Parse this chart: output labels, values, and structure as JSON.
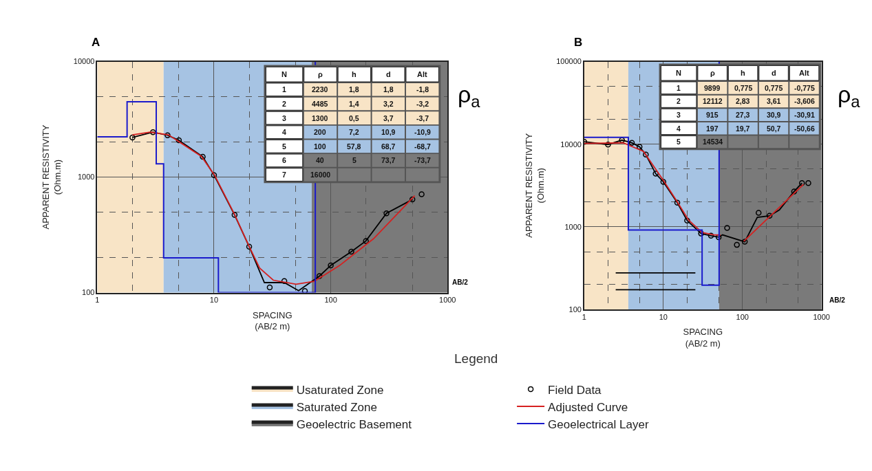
{
  "chart_data": [
    {
      "type": "line",
      "title": "A",
      "xlabel": "SPACING\n(AB/2 m)",
      "ylabel": "APPARENT RESISTIVITY\n(Ohm.m)",
      "legend_title": "Legend",
      "legend": "bottom",
      "log": "xy",
      "grid": true,
      "xlim": [
        1,
        1000
      ],
      "xticks": [
        1,
        {
          "value": 2,
          "label": null
        },
        {
          "value": 5,
          "label": null
        },
        10,
        {
          "value": 20,
          "label": null
        },
        {
          "value": 50,
          "label": null
        },
        100,
        {
          "value": 200,
          "label": null
        },
        {
          "value": 500,
          "label": null
        },
        1000
      ],
      "ylim": [
        100,
        10000
      ],
      "yticks": [
        100,
        {
          "value": 200,
          "label": null
        },
        {
          "value": 500,
          "label": null
        },
        1000,
        {
          "value": 2000,
          "label": null
        },
        {
          "value": 5000,
          "label": null
        },
        10000
      ],
      "bands": [
        {
          "axis": "x",
          "from": 1,
          "to": 3.7,
          "label": "Usaturated Zone",
          "color": "#f8e4c6"
        },
        {
          "axis": "x",
          "from": 3.7,
          "to": 68.7,
          "label": "Saturated Zone",
          "color": "#a6c3e3"
        },
        {
          "axis": "x",
          "from": 68.7,
          "to": 1000,
          "label": "Geoelectric Basement",
          "color": "#7a7a7a"
        }
      ],
      "series": [
        {
          "name": "Field Data",
          "type": "scatter",
          "marker": "circle",
          "color": "#000000",
          "x": [
            2,
            3,
            4,
            5,
            8,
            10,
            15,
            20,
            30,
            40,
            60,
            80,
            100,
            150,
            200,
            300,
            500,
            600
          ],
          "values": [
            2200,
            2450,
            2300,
            2080,
            1500,
            1040,
            470,
            250,
            111,
            126,
            103,
            139,
            172,
            226,
            280,
            486,
            640,
            710
          ]
        },
        {
          "color": "#000000",
          "x": [
            2,
            3,
            4,
            5,
            8,
            10,
            15,
            20,
            27,
            40,
            53,
            80,
            100,
            150,
            200,
            300,
            500
          ],
          "values": [
            2200,
            2450,
            2300,
            2080,
            1500,
            1040,
            470,
            250,
            122,
            122,
            104,
            139,
            172,
            226,
            280,
            486,
            640
          ]
        },
        {
          "name": "Adjusted Curve",
          "color": "#d62020",
          "x": [
            2,
            2.84,
            4.07,
            7.8,
            10.1,
            14.9,
            19.8,
            24.6,
            32.2,
            50.5,
            72.2,
            118.5,
            233,
            523
          ],
          "values": [
            2320,
            2450,
            2320,
            1510,
            1040,
            481,
            256,
            163,
            128,
            118,
            125,
            171,
            293,
            689
          ]
        },
        {
          "name": "Geoelectrical Layer",
          "type": "step",
          "color": "#1a1acc",
          "x": [
            1,
            1.8,
            3.2,
            3.7,
            10.9,
            68.7,
            73.7
          ],
          "values": [
            2230,
            4485,
            1300,
            200,
            100,
            100,
            10000
          ]
        }
      ],
      "annotations": [
        "ρ$_{a}$",
        "AB/2",
        "N",
        "ρ",
        "h",
        "d",
        "Alt",
        "1",
        "2230",
        "1,8",
        "1,8",
        "-1,8",
        "2",
        "4485",
        "1,4",
        "3,2",
        "-3,2",
        "3",
        "1300",
        "0,5",
        "3,7",
        "-3,7",
        "4",
        "200",
        "7,2",
        "10,9",
        "-10,9",
        "5",
        "100",
        "57,8",
        "68,7",
        "-68,7",
        "6",
        "40",
        "5",
        "73,7",
        "-73,7",
        "7",
        "16000"
      ]
    },
    {
      "type": "line",
      "title": "B",
      "xlabel": "SPACING\n(AB/2 m)",
      "ylabel": "APPARENT RESISTIVITY\n(Ohm.m)",
      "log": "xy",
      "grid": true,
      "xlim": [
        1,
        1000
      ],
      "xticks": [
        1,
        {
          "value": 2,
          "label": null
        },
        {
          "value": 5,
          "label": null
        },
        10,
        {
          "value": 20,
          "label": null
        },
        {
          "value": 50,
          "label": null
        },
        100,
        {
          "value": 200,
          "label": null
        },
        {
          "value": 500,
          "label": null
        },
        1000
      ],
      "ylim": [
        100,
        100000
      ],
      "yticks": [
        100,
        {
          "value": 200,
          "label": null
        },
        {
          "value": 500,
          "label": null
        },
        1000,
        {
          "value": 2000,
          "label": null
        },
        {
          "value": 5000,
          "label": null
        },
        10000,
        {
          "value": 20000,
          "label": null
        },
        {
          "value": 50000,
          "label": null
        },
        100000
      ],
      "bands": [
        {
          "axis": "x",
          "from": 1,
          "to": 3.61,
          "color": "#f8e4c6"
        },
        {
          "axis": "x",
          "from": 3.61,
          "to": 50.7,
          "color": "#a6c3e3"
        },
        {
          "axis": "x",
          "from": 50.7,
          "to": 1000,
          "color": "#7a7a7a"
        }
      ],
      "series": [
        {
          "type": "scatter",
          "marker": "circle",
          "color": "#000000",
          "x": [
            1,
            2,
            3,
            4,
            5,
            6,
            8,
            10,
            15,
            20,
            30,
            40,
            50,
            64,
            85,
            107,
            160,
            220,
            450,
            565,
            680
          ],
          "values": [
            10700,
            9900,
            11200,
            10400,
            9300,
            7500,
            4400,
            3500,
            1960,
            1190,
            830,
            780,
            750,
            970,
            605,
            660,
            1480,
            1360,
            2680,
            3380,
            3380
          ]
        },
        {
          "color": "#000000",
          "x": [
            1,
            2,
            3,
            4,
            5,
            6,
            8,
            10,
            15,
            20,
            30,
            40,
            50,
            56,
            107,
            154,
            220,
            293,
            450,
            565
          ],
          "values": [
            10700,
            9900,
            11200,
            10400,
            9300,
            7500,
            4400,
            3500,
            1960,
            1190,
            830,
            780,
            750,
            800,
            660,
            1300,
            1360,
            1600,
            2680,
            3380
          ]
        },
        {
          "color": "#d62020",
          "x": [
            1,
            3.11,
            5.62,
            10,
            15,
            20.8,
            30.9,
            42.8,
            52.8,
            80,
            104,
            591
          ],
          "values": [
            10190,
            10380,
            8190,
            3650,
            2010,
            1210,
            855,
            802,
            793,
            null,
            670,
            3260
          ]
        },
        {
          "type": "step",
          "color": "#1a1acc",
          "x": [
            1,
            3.61,
            30.9,
            50.7
          ],
          "values": [
            12112,
            915,
            197,
            100000
          ]
        },
        {
          "color": "#000000",
          "x": [
            2.5,
            25.4
          ],
          "values": [
            277,
            277
          ]
        },
        {
          "color": "#000000",
          "x": [
            2.5,
            25.4
          ],
          "values": [
            173,
            173
          ]
        }
      ],
      "annotations": [
        "ρ$_{a}$",
        "AB/2",
        "N",
        "ρ",
        "h",
        "d",
        "Alt",
        "1",
        "9899",
        "0,775",
        "0,775",
        "-0,775",
        "2",
        "12112",
        "2,83",
        "3,61",
        "-3,606",
        "3",
        "915",
        "27,3",
        "30,9",
        "-30,91",
        "4",
        "197",
        "19,7",
        "50,7",
        "-50,66",
        "5",
        "14534"
      ]
    }
  ]
}
